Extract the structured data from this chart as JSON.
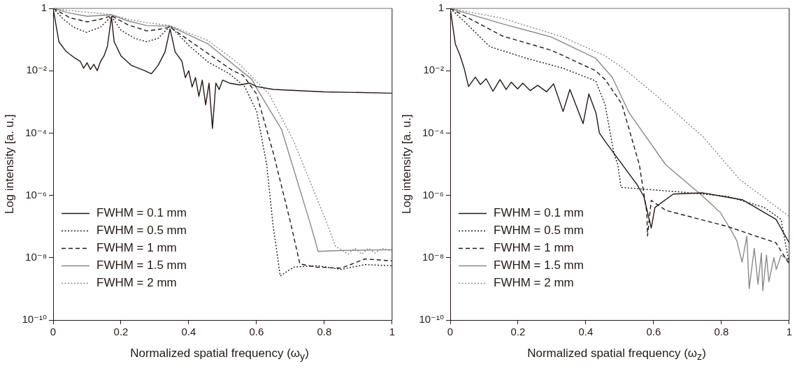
{
  "chart_data": [
    {
      "type": "line",
      "xlabel": "Normalized spatial frequency (ω$_{y}$)",
      "ylabel": "Log intensity [a. u.]",
      "log": "y",
      "grid": false,
      "legend": "bottom left",
      "xlim": [
        0,
        1
      ],
      "xticks": [
        0,
        0.2,
        0.4,
        0.6,
        0.8,
        1
      ],
      "ylim": [
        1e-10,
        1
      ],
      "yticks": [
        {
          "value": 1e-10,
          "label": "10⁻¹⁰"
        },
        {
          "value": 1e-08,
          "label": "10⁻⁸"
        },
        {
          "value": 1e-06,
          "label": "10⁻⁶"
        },
        {
          "value": 0.0001,
          "label": "10⁻⁴"
        },
        {
          "value": 0.01,
          "label": "10⁻²"
        },
        1
      ],
      "series": [
        {
          "name": "FWHM = 0.1 mm",
          "color": "#231815",
          "line_style": "solid",
          "x": [
            0,
            0.017,
            0.037,
            0.065,
            0.08,
            0.09,
            0.1,
            0.11,
            0.12,
            0.13,
            0.14,
            0.15,
            0.16,
            0.172,
            0.18,
            0.2,
            0.23,
            0.27,
            0.29,
            0.31,
            0.33,
            0.345,
            0.36,
            0.38,
            0.39,
            0.4,
            0.41,
            0.42,
            0.43,
            0.44,
            0.45,
            0.46,
            0.47,
            0.48,
            0.49,
            0.5,
            0.52,
            0.55,
            0.58,
            0.6,
            0.65,
            0.8,
            1
          ],
          "values": [
            1,
            0.085,
            0.043,
            0.025,
            0.02,
            0.012,
            0.018,
            0.011,
            0.016,
            0.01,
            0.02,
            0.03,
            0.06,
            0.54,
            0.085,
            0.03,
            0.015,
            0.01,
            0.008,
            0.015,
            0.04,
            0.22,
            0.04,
            0.02,
            0.006,
            0.01,
            0.003,
            0.006,
            0.0015,
            0.005,
            0.0008,
            0.004,
            0.00014,
            0.004,
            0.0025,
            0.005,
            0.004,
            0.0035,
            0.004,
            0.0031,
            0.0025,
            0.0021,
            0.0019
          ]
        },
        {
          "name": "FWHM = 0.5 mm",
          "color": "#231815",
          "line_style": "dotted",
          "x": [
            0,
            0.03,
            0.06,
            0.098,
            0.14,
            0.172,
            0.2,
            0.24,
            0.276,
            0.31,
            0.345,
            0.4,
            0.457,
            0.52,
            0.565,
            0.6,
            0.63,
            0.648,
            0.67,
            0.71,
            0.78,
            0.85,
            0.92,
            1
          ],
          "values": [
            1,
            0.45,
            0.25,
            0.17,
            0.25,
            0.56,
            0.2,
            0.11,
            0.085,
            0.11,
            0.27,
            0.065,
            0.019,
            0.008,
            0.0031,
            0.00051,
            1e-05,
            1.3e-07,
            2.6e-09,
            5e-09,
            5.5e-09,
            4.2e-09,
            6e-09,
            5.5e-09
          ]
        },
        {
          "name": "FWHM = 1 mm",
          "color": "#231815",
          "line_style": "dashed",
          "x": [
            0,
            0.05,
            0.1,
            0.14,
            0.172,
            0.22,
            0.276,
            0.31,
            0.345,
            0.45,
            0.53,
            0.56,
            0.6,
            0.65,
            0.7,
            0.728,
            0.775,
            0.85,
            0.92,
            1
          ],
          "values": [
            1,
            0.5,
            0.37,
            0.45,
            0.58,
            0.3,
            0.19,
            0.21,
            0.25,
            0.04,
            0.01,
            0.0072,
            0.0018,
            2.2e-05,
            1.4e-07,
            6.3e-09,
            5e-09,
            4.6e-09,
            9.1e-09,
            7.9e-09
          ]
        },
        {
          "name": "FWHM = 1.5 mm",
          "color": "#898989",
          "line_style": "solid",
          "x": [
            0,
            0.05,
            0.1,
            0.172,
            0.22,
            0.276,
            0.345,
            0.457,
            0.587,
            0.6,
            0.674,
            0.76,
            0.782,
            0.85,
            1
          ],
          "values": [
            1,
            0.7,
            0.56,
            0.62,
            0.4,
            0.28,
            0.27,
            0.072,
            0.0052,
            0.0028,
            0.00013,
            1.1e-07,
            1.6e-08,
            1.7e-08,
            1.8e-08
          ]
        },
        {
          "name": "FWHM = 2 mm",
          "color": "#898989",
          "line_style": "dotted",
          "x": [
            0,
            0.05,
            0.1,
            0.172,
            0.22,
            0.276,
            0.345,
            0.457,
            0.55,
            0.637,
            0.71,
            0.81,
            0.833,
            0.85,
            0.87,
            0.89,
            0.91,
            0.93,
            0.95,
            0.97,
            1
          ],
          "values": [
            1,
            0.85,
            0.76,
            0.63,
            0.45,
            0.35,
            0.28,
            0.093,
            0.016,
            0.0018,
            5.4e-05,
            1.1e-07,
            2.3e-08,
            1.8e-08,
            1.3e-08,
            2e-08,
            1.3e-08,
            2e-08,
            1.4e-08,
            2e-08,
            1.6e-08
          ]
        }
      ]
    },
    {
      "type": "line",
      "xlabel": "Normalized spatial frequency (ω$_{z}$)",
      "ylabel": "Log intensity [a. u.]",
      "log": "y",
      "grid": false,
      "legend": "bottom left",
      "xlim": [
        0,
        1
      ],
      "xticks": [
        0,
        0.2,
        0.4,
        0.6,
        0.8,
        1
      ],
      "ylim": [
        1e-10,
        1
      ],
      "yticks": [
        {
          "value": 1e-10,
          "label": "10⁻¹⁰"
        },
        {
          "value": 1e-08,
          "label": "10⁻⁸"
        },
        {
          "value": 1e-06,
          "label": "10⁻⁶"
        },
        {
          "value": 0.0001,
          "label": "10⁻⁴"
        },
        {
          "value": 0.01,
          "label": "10⁻²"
        },
        1
      ],
      "series": [
        {
          "name": "FWHM = 0.1 mm",
          "color": "#231815",
          "line_style": "solid",
          "x": [
            0,
            0.015,
            0.028,
            0.041,
            0.054,
            0.074,
            0.089,
            0.106,
            0.126,
            0.147,
            0.165,
            0.18,
            0.199,
            0.214,
            0.236,
            0.258,
            0.284,
            0.305,
            0.333,
            0.353,
            0.392,
            0.409,
            0.43,
            0.44,
            0.457,
            0.55,
            0.571,
            0.593,
            0.604,
            0.658,
            0.745,
            0.862,
            0.961,
            1
          ],
          "values": [
            1,
            0.072,
            0.033,
            0.012,
            0.0031,
            0.0062,
            0.0036,
            0.0055,
            0.0022,
            0.0052,
            0.0025,
            0.0043,
            0.0026,
            0.004,
            0.0023,
            0.0034,
            0.0021,
            0.0038,
            0.00049,
            0.0025,
            0.0002,
            0.0018,
            0.00044,
            0.0001,
            5.4e-05,
            2.3e-06,
            9.3e-07,
            8.9e-08,
            4.1e-07,
            1.1e-06,
            1.2e-06,
            7.2e-07,
            1.7e-07,
            3e-08
          ]
        },
        {
          "name": "FWHM = 0.5 mm",
          "color": "#231815",
          "line_style": "dotted",
          "x": [
            0,
            0.045,
            0.117,
            0.225,
            0.333,
            0.429,
            0.457,
            0.483,
            0.494,
            0.504,
            0.673,
            0.818,
            0.926,
            0.976,
            1
          ],
          "values": [
            1,
            0.35,
            0.059,
            0.025,
            0.012,
            0.0047,
            0.0008,
            2.2e-05,
            1e-05,
            1.8e-06,
            1.3e-06,
            9.3e-07,
            4.1e-07,
            1.7e-07,
            6.3e-09
          ]
        },
        {
          "name": "FWHM = 1 mm",
          "color": "#231815",
          "line_style": "dashed",
          "x": [
            0,
            0.154,
            0.299,
            0.429,
            0.457,
            0.506,
            0.558,
            0.58,
            0.582,
            0.593,
            0.636,
            0.818,
            0.961,
            1
          ],
          "values": [
            1,
            0.13,
            0.045,
            0.01,
            0.0052,
            0.00087,
            9.5e-06,
            2.8e-07,
            5e-08,
            6.9e-07,
            3.3e-07,
            1e-07,
            3e-08,
            6.3e-09
          ]
        },
        {
          "name": "FWHM = 1.5 mm",
          "color": "#898989",
          "line_style": "solid",
          "x": [
            0,
            0.154,
            0.299,
            0.429,
            0.478,
            0.528,
            0.636,
            0.738,
            0.797,
            0.831,
            0.846,
            0.861,
            0.875,
            0.882,
            0.897,
            0.908,
            0.918,
            0.922,
            0.933,
            0.94,
            0.955,
            0.962,
            0.976,
            1
          ],
          "values": [
            1,
            0.32,
            0.12,
            0.025,
            0.0062,
            0.00044,
            9.5e-06,
            1.1e-06,
            2.8e-07,
            6.8e-08,
            3.4e-08,
            7.1e-09,
            4.9e-08,
            1e-09,
            2e-08,
            1.4e-09,
            1.4e-08,
            8.7e-10,
            1.2e-08,
            1.7e-09,
            1e-08,
            4.2e-09,
            1.2e-08,
            8.3e-09
          ]
        },
        {
          "name": "FWHM = 2 mm",
          "color": "#898989",
          "line_style": "dotted",
          "x": [
            0,
            0.154,
            0.333,
            0.457,
            0.515,
            0.602,
            0.745,
            0.853,
            1
          ],
          "values": [
            1,
            0.48,
            0.12,
            0.03,
            0.011,
            0.0018,
            7.8e-05,
            3.3e-06,
            2.1e-07
          ]
        }
      ]
    }
  ]
}
